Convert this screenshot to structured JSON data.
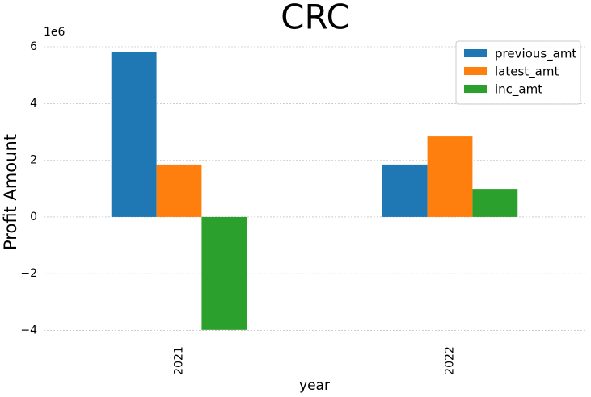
{
  "chart_data": {
    "type": "bar",
    "title": "CRC",
    "x_label": "year",
    "y_label": "Profit Amount",
    "y_offset_label": "1e6",
    "categories": [
      "2021",
      "2022"
    ],
    "series": [
      {
        "name": "previous_amt",
        "color": "#1f77b4",
        "values": [
          5.83,
          1.85
        ]
      },
      {
        "name": "latest_amt",
        "color": "#ff7f0e",
        "values": [
          1.85,
          2.84
        ]
      },
      {
        "name": "inc_amt",
        "color": "#2ca02c",
        "values": [
          -3.98,
          0.99
        ]
      }
    ],
    "ylim": [
      -4.44,
      6.37
    ],
    "yticks": [
      {
        "value": -4,
        "label": "−4"
      },
      {
        "value": -2,
        "label": "−2"
      },
      0,
      2,
      4,
      6
    ],
    "grid": true,
    "legend": "upper right"
  }
}
